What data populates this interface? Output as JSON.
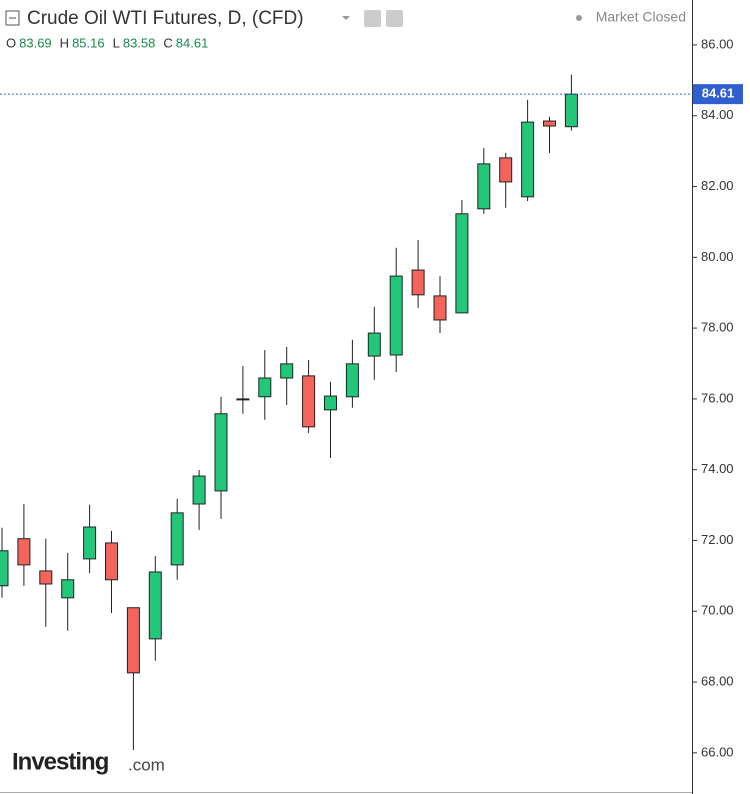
{
  "chart_data": {
    "type": "candlestick",
    "title": "Crude Oil WTI Futures, D, (CFD)",
    "status": "Market Closed",
    "ohlc_labels": [
      "O",
      "H",
      "L",
      "C"
    ],
    "logo": "Investing",
    "logo_suffix": ".com",
    "up_color": "#22c77a",
    "down_color": "#f4645b",
    "price_line_color": "#2f5fd0",
    "open": [
      70.72,
      72.05,
      71.14,
      70.38,
      71.48,
      71.93,
      70.1,
      69.22,
      71.31,
      73.03,
      73.4,
      76.0,
      76.06,
      76.59,
      76.65,
      75.69,
      76.06,
      77.21,
      77.24,
      79.64,
      78.91,
      78.43,
      81.37,
      82.81,
      81.71,
      83.85,
      83.69
    ],
    "high": [
      72.36,
      73.03,
      72.05,
      71.65,
      73.01,
      72.27,
      70.1,
      71.56,
      73.18,
      73.99,
      76.06,
      76.93,
      77.38,
      77.47,
      77.1,
      76.48,
      77.67,
      78.6,
      80.27,
      80.49,
      79.47,
      81.62,
      83.09,
      82.95,
      84.45,
      83.97,
      85.16
    ],
    "low": [
      70.38,
      70.72,
      69.56,
      69.45,
      71.08,
      69.95,
      66.08,
      68.6,
      70.89,
      72.3,
      72.61,
      75.58,
      75.41,
      75.83,
      75.04,
      74.33,
      75.75,
      76.54,
      76.76,
      78.57,
      77.86,
      78.43,
      81.23,
      81.4,
      81.59,
      82.95,
      83.58
    ],
    "close": [
      71.71,
      71.31,
      70.77,
      70.89,
      72.38,
      70.89,
      68.26,
      71.11,
      72.78,
      73.82,
      75.58,
      76.0,
      76.59,
      76.99,
      75.21,
      76.08,
      76.99,
      77.86,
      79.47,
      78.94,
      78.23,
      81.23,
      82.64,
      82.13,
      83.82,
      83.71,
      84.61
    ],
    "ylim": [
      64.95,
      87.27
    ],
    "yticks": [
      {
        "value": 66,
        "label": "66.00"
      },
      {
        "value": 68,
        "label": "68.00"
      },
      {
        "value": 70,
        "label": "70.00"
      },
      {
        "value": 72,
        "label": "72.00"
      },
      {
        "value": 74,
        "label": "74.00"
      },
      {
        "value": 76,
        "label": "76.00"
      },
      {
        "value": 78,
        "label": "78.00"
      },
      {
        "value": 80,
        "label": "80.00"
      },
      {
        "value": 82,
        "label": "82.00"
      },
      {
        "value": 84,
        "label": "84.00"
      },
      {
        "value": 86,
        "label": "86.00"
      }
    ]
  }
}
